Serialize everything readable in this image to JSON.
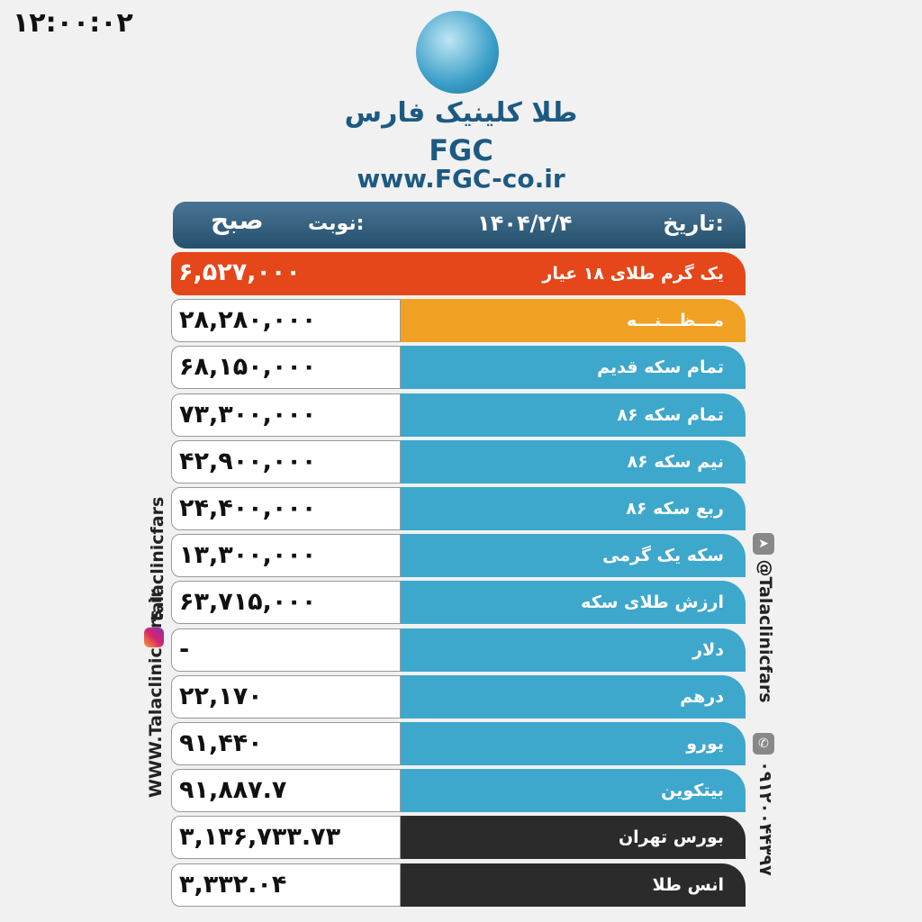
{
  "time": "۱۲:۰۰:۰۲",
  "brand": {
    "name_fa": "طلا کلینیک فارس",
    "short": "FGC",
    "url": "www.FGC-co.ir"
  },
  "header": {
    "date_label": "تاریخ:",
    "date": "۱۴۰۴/۲/۴",
    "shift_label": "نوبت:",
    "shift": "صبح"
  },
  "rows": [
    {
      "label": "یک گرم طلای ۱۸ عیار",
      "value": "۶,۵۲۷,۰۰۰",
      "color": "#e5461a"
    },
    {
      "label": "مـــظـــنـــه",
      "value": "۲۸,۲۸۰,۰۰۰",
      "color": "#f0a023"
    },
    {
      "label": "تمام سکه قدیم",
      "value": "۶۸,۱۵۰,۰۰۰",
      "color": "#3ea7cc"
    },
    {
      "label": "تمام سکه ۸۶",
      "value": "۷۳,۳۰۰,۰۰۰",
      "color": "#3ea7cc"
    },
    {
      "label": "نیم سکه ۸۶",
      "value": "۴۲,۹۰۰,۰۰۰",
      "color": "#3ea7cc"
    },
    {
      "label": "ربع سکه ۸۶",
      "value": "۲۴,۴۰۰,۰۰۰",
      "color": "#3ea7cc"
    },
    {
      "label": "سکه یک گرمی",
      "value": "۱۳,۳۰۰,۰۰۰",
      "color": "#3ea7cc"
    },
    {
      "label": "ارزش طلای سکه",
      "value": "۶۳,۷۱۵,۰۰۰",
      "color": "#3ea7cc"
    },
    {
      "label": "دلار",
      "value": "-",
      "color": "#3ea7cc"
    },
    {
      "label": "درهم",
      "value": "۲۲,۱۷۰",
      "color": "#3ea7cc"
    },
    {
      "label": "یورو",
      "value": "۹۱,۴۴۰",
      "color": "#3ea7cc"
    },
    {
      "label": "بیتکوین",
      "value": "۹۱,۸۸۷.۷",
      "color": "#3ea7cc"
    },
    {
      "label": "بورس تهران",
      "value": "۳,۱۳۶,۷۳۳.۷۳",
      "color": "#2b2b2b"
    },
    {
      "label": "انس طلا",
      "value": "۳,۳۳۲.۰۴",
      "color": "#2b2b2b"
    }
  ],
  "left_side": {
    "website": "WWW.Talaclinicfars.ir",
    "instagram": "talaclinicfars",
    "instagram_icon": "instagram-icon"
  },
  "right_side": {
    "telegram": "@Talaclinicfars",
    "telegram_icon": "telegram-icon",
    "phone": "۰۹۱۲۰۰۴۴۳۹۷",
    "phone_icon": "phone-icon"
  }
}
